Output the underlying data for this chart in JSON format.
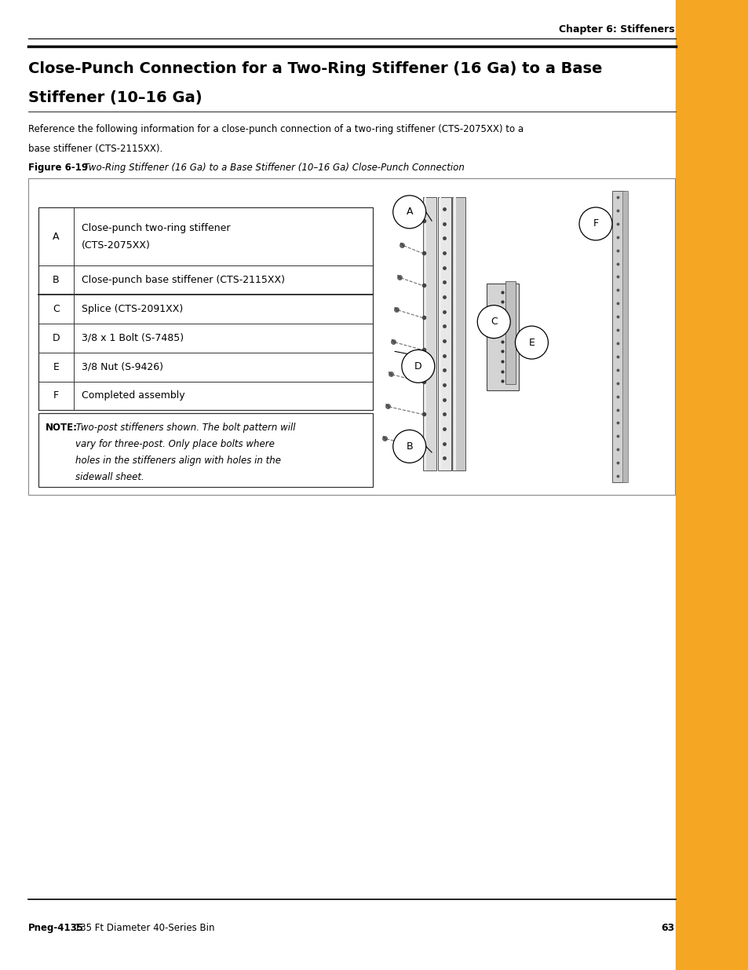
{
  "page_width": 9.54,
  "page_height": 12.35,
  "bg_color": "#ffffff",
  "orange_color": "#F5A623",
  "chapter_header": "Chapter 6: Stiffeners",
  "main_title_line1": "Close-Punch Connection for a Two-Ring Stiffener (16 Ga) to a Base",
  "main_title_line2": "Stiffener (10–16 Ga)",
  "body_text_line1": "Reference the following information for a close-punch connection of a two-ring stiffener (CTS-2075XX) to a",
  "body_text_line2": "base stiffener (CTS-2115XX).",
  "figure_label_bold": "Figure 6-19",
  "figure_label_italic": " Two-Ring Stiffener (16 Ga) to a Base Stiffener (10–16 Ga) Close-Punch Connection",
  "footer_bold": "Pneg-4135",
  "footer_normal": " 135 Ft Diameter 40-Series Bin",
  "page_number": "63",
  "table_rows": [
    {
      "letter": "A",
      "description": "Close-punch two-ring stiffener\n(CTS-2075XX)"
    },
    {
      "letter": "B",
      "description": "Close-punch base stiffener (CTS-2115XX)"
    },
    {
      "letter": "C",
      "description": "Splice (CTS-2091XX)"
    },
    {
      "letter": "D",
      "description": "3/8 x 1 Bolt (S-7485)"
    },
    {
      "letter": "E",
      "description": "3/8 Nut (S-9426)"
    },
    {
      "letter": "F",
      "description": "Completed assembly"
    }
  ],
  "note_bold": "NOTE:",
  "note_lines": [
    " Two-post stiffeners shown. The bolt pattern will",
    "vary for three-post. Only place bolts where",
    "holes in the stiffeners align with holes in the",
    "sidewall sheet."
  ]
}
